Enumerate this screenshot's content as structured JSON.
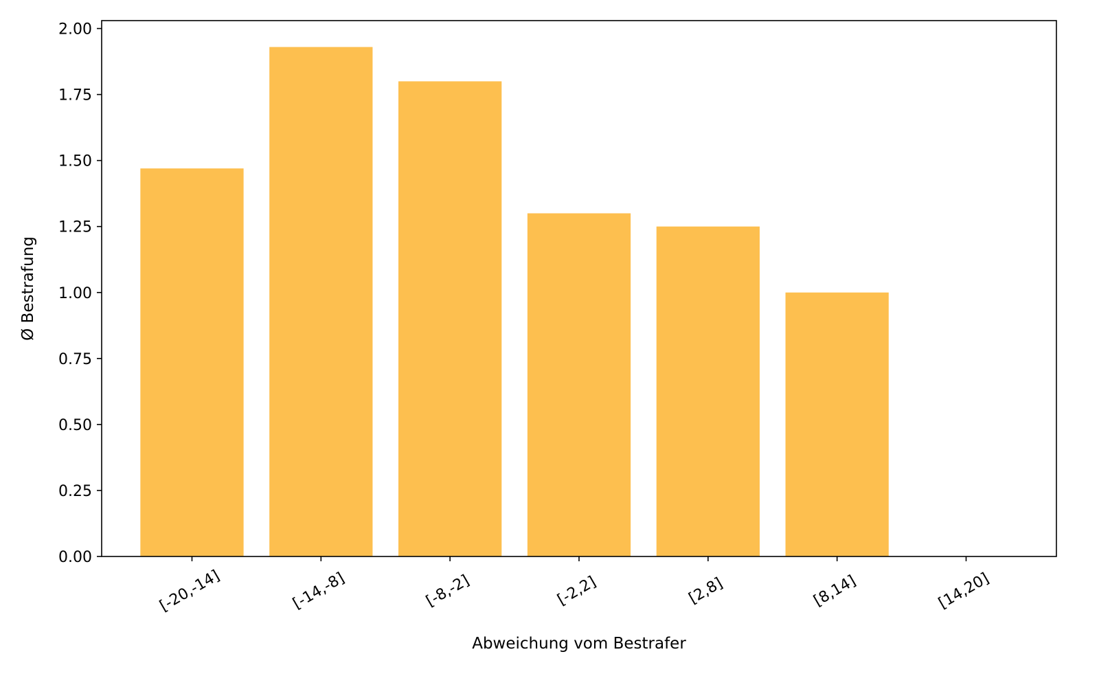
{
  "chart_data": {
    "type": "bar",
    "title": "",
    "xlabel": "Abweichung vom Bestrafer",
    "ylabel": "Ø Bestrafung",
    "categories": [
      "[-20,-14]",
      "[-14,-8]",
      "[-8,-2]",
      "[-2,2]",
      "[2,8]",
      "[8,14]",
      "[14,20]"
    ],
    "values": [
      1.47,
      1.93,
      1.8,
      1.3,
      1.25,
      1.0,
      0.0
    ],
    "ylim": [
      0,
      2.03
    ],
    "yticks": [
      0.0,
      0.25,
      0.5,
      0.75,
      1.0,
      1.25,
      1.5,
      1.75,
      2.0
    ],
    "ytick_labels": [
      "0.00",
      "0.25",
      "0.50",
      "0.75",
      "1.00",
      "1.25",
      "1.50",
      "1.75",
      "2.00"
    ],
    "xtick_rotation_deg": 30,
    "grid": false,
    "bar_color": "#fdbf4f"
  }
}
